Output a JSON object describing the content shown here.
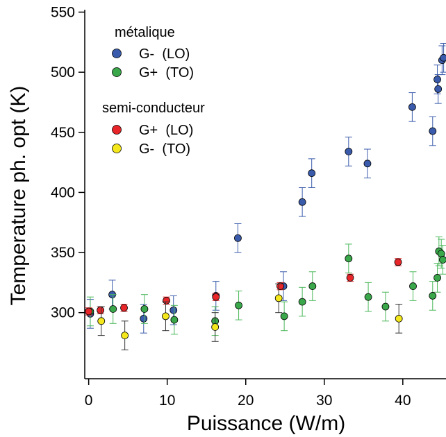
{
  "chart_data": {
    "type": "scatter",
    "xlabel": "Puissance (W/m)",
    "ylabel": "Temperature ph. opt (K)",
    "xlim": [
      -0.5,
      45.5
    ],
    "ylim": [
      245,
      552
    ],
    "xticks": [
      0,
      10,
      20,
      30,
      40
    ],
    "yticks": [
      300,
      350,
      400,
      450,
      500,
      550
    ],
    "grid": false,
    "legend_position": "top-left",
    "legend_groups": [
      {
        "title": "métalique",
        "series": [
          "G-  (LO)",
          "G+  (TO)"
        ]
      },
      {
        "title": "semi-conducteur",
        "series": [
          "G+  (LO)",
          "G-  (TO)"
        ]
      }
    ],
    "series": [
      {
        "name": "G-  (LO)",
        "group": "métalique",
        "color": "#3a5bab",
        "errorbar_color": "#3a5bab",
        "points": [
          {
            "x": 0.2,
            "y": 299,
            "err": 12
          },
          {
            "x": 3.0,
            "y": 315,
            "err": 12
          },
          {
            "x": 7.0,
            "y": 295,
            "err": 12
          },
          {
            "x": 10.8,
            "y": 302,
            "err": 12
          },
          {
            "x": 16.2,
            "y": 314,
            "err": 12
          },
          {
            "x": 19.0,
            "y": 362,
            "err": 12
          },
          {
            "x": 24.8,
            "y": 322,
            "err": 12
          },
          {
            "x": 27.2,
            "y": 392,
            "err": 12
          },
          {
            "x": 28.4,
            "y": 416,
            "err": 12
          },
          {
            "x": 33.1,
            "y": 434,
            "err": 12
          },
          {
            "x": 35.5,
            "y": 424,
            "err": 12
          },
          {
            "x": 41.2,
            "y": 471,
            "err": 12
          },
          {
            "x": 43.8,
            "y": 451,
            "err": 12
          },
          {
            "x": 44.4,
            "y": 494,
            "err": 12
          },
          {
            "x": 44.5,
            "y": 486,
            "err": 12
          },
          {
            "x": 45.0,
            "y": 510,
            "err": 12
          },
          {
            "x": 45.2,
            "y": 512,
            "err": 12
          }
        ]
      },
      {
        "name": "G+  (TO)",
        "group": "métalique",
        "color": "#3aa84a",
        "errorbar_color": "#4cb85a",
        "points": [
          {
            "x": 0.2,
            "y": 301,
            "err": 12
          },
          {
            "x": 3.1,
            "y": 303,
            "err": 12
          },
          {
            "x": 7.1,
            "y": 303,
            "err": 12
          },
          {
            "x": 10.9,
            "y": 294,
            "err": 12
          },
          {
            "x": 16.1,
            "y": 293,
            "err": 12
          },
          {
            "x": 19.1,
            "y": 306,
            "err": 12
          },
          {
            "x": 24.9,
            "y": 297,
            "err": 12
          },
          {
            "x": 27.2,
            "y": 309,
            "err": 12
          },
          {
            "x": 28.5,
            "y": 322,
            "err": 12
          },
          {
            "x": 33.1,
            "y": 345,
            "err": 12
          },
          {
            "x": 35.6,
            "y": 313,
            "err": 12
          },
          {
            "x": 37.8,
            "y": 305,
            "err": 12
          },
          {
            "x": 41.3,
            "y": 322,
            "err": 12
          },
          {
            "x": 43.8,
            "y": 314,
            "err": 12
          },
          {
            "x": 44.4,
            "y": 329,
            "err": 12
          },
          {
            "x": 44.6,
            "y": 351,
            "err": 12
          },
          {
            "x": 44.9,
            "y": 349,
            "err": 12
          },
          {
            "x": 45.1,
            "y": 344,
            "err": 12
          }
        ]
      },
      {
        "name": "G+  (LO)",
        "group": "semi-conducteur",
        "color": "#e8262a",
        "errorbar_color": "#e8262a",
        "points": [
          {
            "x": 0.0,
            "y": 301,
            "err": 3
          },
          {
            "x": 1.5,
            "y": 302,
            "err": 3
          },
          {
            "x": 4.5,
            "y": 304,
            "err": 3
          },
          {
            "x": 9.9,
            "y": 310,
            "err": 3
          },
          {
            "x": 16.2,
            "y": 313,
            "err": 3
          },
          {
            "x": 24.4,
            "y": 322,
            "err": 3
          },
          {
            "x": 33.3,
            "y": 329,
            "err": 3
          },
          {
            "x": 39.4,
            "y": 342,
            "err": 3
          }
        ]
      },
      {
        "name": "G-  (TO)",
        "group": "semi-conducteur",
        "color": "#f4e81c",
        "errorbar_color": "#333333",
        "points": [
          {
            "x": 1.6,
            "y": 293,
            "err": 12
          },
          {
            "x": 4.6,
            "y": 281,
            "err": 12
          },
          {
            "x": 9.8,
            "y": 297,
            "err": 12
          },
          {
            "x": 16.1,
            "y": 288,
            "err": 12
          },
          {
            "x": 24.2,
            "y": 312,
            "err": 12
          },
          {
            "x": 39.5,
            "y": 295,
            "err": 12
          }
        ]
      }
    ]
  }
}
